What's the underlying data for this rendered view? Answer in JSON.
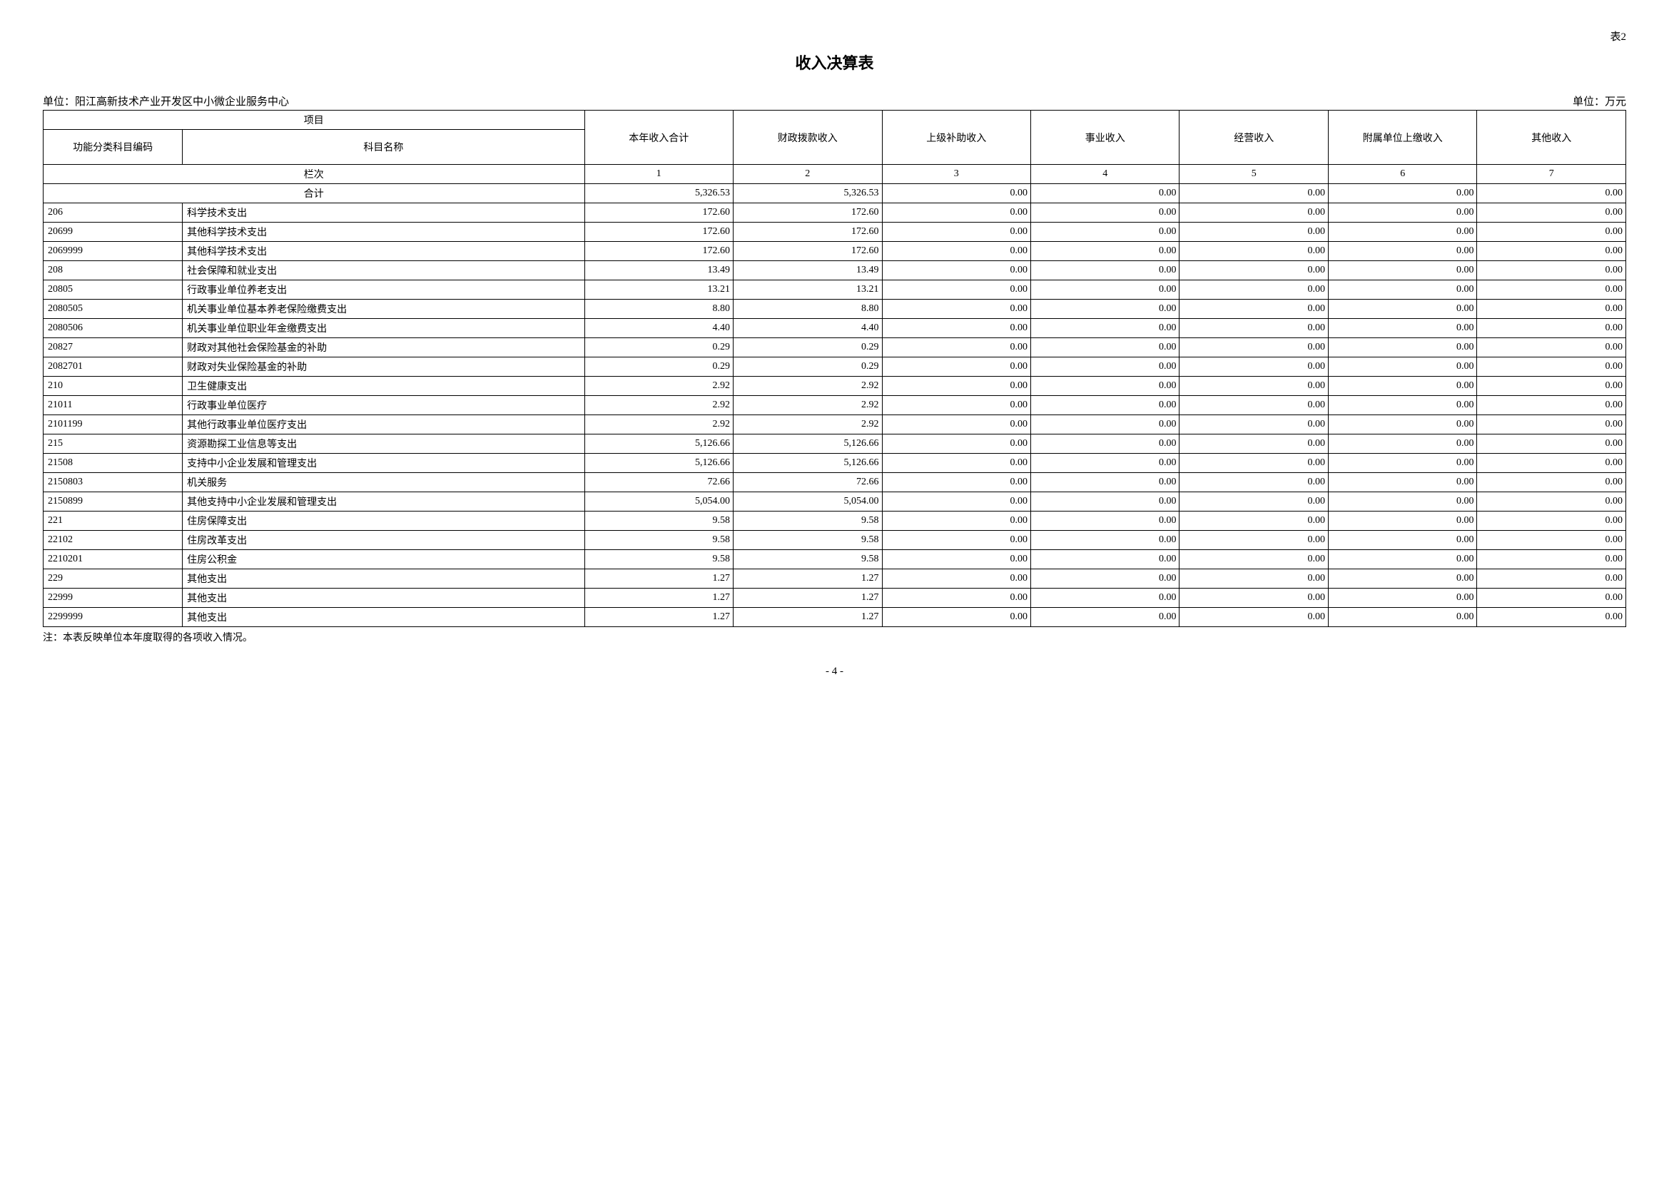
{
  "table_label": "表2",
  "title": "收入决算表",
  "unit_left_prefix": "单位：",
  "unit_left": "阳江高新技术产业开发区中小微企业服务中心",
  "unit_right_prefix": "单位：",
  "unit_right": "万元",
  "header": {
    "project": "项目",
    "code": "功能分类科目编码",
    "name": "科目名称",
    "cols": [
      "本年收入合计",
      "财政拨款收入",
      "上级补助收入",
      "事业收入",
      "经营收入",
      "附属单位上缴收入",
      "其他收入"
    ]
  },
  "col_index_row": {
    "label": "栏次",
    "nums": [
      "1",
      "2",
      "3",
      "4",
      "5",
      "6",
      "7"
    ]
  },
  "total_label": "合计",
  "rows": [
    {
      "code": "",
      "name": "合计",
      "v": [
        "5,326.53",
        "5,326.53",
        "0.00",
        "0.00",
        "0.00",
        "0.00",
        "0.00"
      ]
    },
    {
      "code": "206",
      "name": "科学技术支出",
      "v": [
        "172.60",
        "172.60",
        "0.00",
        "0.00",
        "0.00",
        "0.00",
        "0.00"
      ]
    },
    {
      "code": "20699",
      "name": "其他科学技术支出",
      "v": [
        "172.60",
        "172.60",
        "0.00",
        "0.00",
        "0.00",
        "0.00",
        "0.00"
      ]
    },
    {
      "code": "2069999",
      "name": "其他科学技术支出",
      "v": [
        "172.60",
        "172.60",
        "0.00",
        "0.00",
        "0.00",
        "0.00",
        "0.00"
      ]
    },
    {
      "code": "208",
      "name": "社会保障和就业支出",
      "v": [
        "13.49",
        "13.49",
        "0.00",
        "0.00",
        "0.00",
        "0.00",
        "0.00"
      ]
    },
    {
      "code": "20805",
      "name": "行政事业单位养老支出",
      "v": [
        "13.21",
        "13.21",
        "0.00",
        "0.00",
        "0.00",
        "0.00",
        "0.00"
      ]
    },
    {
      "code": "2080505",
      "name": "机关事业单位基本养老保险缴费支出",
      "v": [
        "8.80",
        "8.80",
        "0.00",
        "0.00",
        "0.00",
        "0.00",
        "0.00"
      ]
    },
    {
      "code": "2080506",
      "name": "机关事业单位职业年金缴费支出",
      "v": [
        "4.40",
        "4.40",
        "0.00",
        "0.00",
        "0.00",
        "0.00",
        "0.00"
      ]
    },
    {
      "code": "20827",
      "name": "财政对其他社会保险基金的补助",
      "v": [
        "0.29",
        "0.29",
        "0.00",
        "0.00",
        "0.00",
        "0.00",
        "0.00"
      ]
    },
    {
      "code": "2082701",
      "name": "财政对失业保险基金的补助",
      "v": [
        "0.29",
        "0.29",
        "0.00",
        "0.00",
        "0.00",
        "0.00",
        "0.00"
      ]
    },
    {
      "code": "210",
      "name": "卫生健康支出",
      "v": [
        "2.92",
        "2.92",
        "0.00",
        "0.00",
        "0.00",
        "0.00",
        "0.00"
      ]
    },
    {
      "code": "21011",
      "name": "行政事业单位医疗",
      "v": [
        "2.92",
        "2.92",
        "0.00",
        "0.00",
        "0.00",
        "0.00",
        "0.00"
      ]
    },
    {
      "code": "2101199",
      "name": "其他行政事业单位医疗支出",
      "v": [
        "2.92",
        "2.92",
        "0.00",
        "0.00",
        "0.00",
        "0.00",
        "0.00"
      ]
    },
    {
      "code": "215",
      "name": "资源勘探工业信息等支出",
      "v": [
        "5,126.66",
        "5,126.66",
        "0.00",
        "0.00",
        "0.00",
        "0.00",
        "0.00"
      ]
    },
    {
      "code": "21508",
      "name": "支持中小企业发展和管理支出",
      "v": [
        "5,126.66",
        "5,126.66",
        "0.00",
        "0.00",
        "0.00",
        "0.00",
        "0.00"
      ]
    },
    {
      "code": "2150803",
      "name": "机关服务",
      "v": [
        "72.66",
        "72.66",
        "0.00",
        "0.00",
        "0.00",
        "0.00",
        "0.00"
      ]
    },
    {
      "code": "2150899",
      "name": "其他支持中小企业发展和管理支出",
      "v": [
        "5,054.00",
        "5,054.00",
        "0.00",
        "0.00",
        "0.00",
        "0.00",
        "0.00"
      ]
    },
    {
      "code": "221",
      "name": "住房保障支出",
      "v": [
        "9.58",
        "9.58",
        "0.00",
        "0.00",
        "0.00",
        "0.00",
        "0.00"
      ]
    },
    {
      "code": "22102",
      "name": "住房改革支出",
      "v": [
        "9.58",
        "9.58",
        "0.00",
        "0.00",
        "0.00",
        "0.00",
        "0.00"
      ]
    },
    {
      "code": "2210201",
      "name": "住房公积金",
      "v": [
        "9.58",
        "9.58",
        "0.00",
        "0.00",
        "0.00",
        "0.00",
        "0.00"
      ]
    },
    {
      "code": "229",
      "name": "其他支出",
      "v": [
        "1.27",
        "1.27",
        "0.00",
        "0.00",
        "0.00",
        "0.00",
        "0.00"
      ]
    },
    {
      "code": "22999",
      "name": "其他支出",
      "v": [
        "1.27",
        "1.27",
        "0.00",
        "0.00",
        "0.00",
        "0.00",
        "0.00"
      ]
    },
    {
      "code": "2299999",
      "name": "其他支出",
      "v": [
        "1.27",
        "1.27",
        "0.00",
        "0.00",
        "0.00",
        "0.00",
        "0.00"
      ]
    }
  ],
  "footnote": "注：本表反映单位本年度取得的各项收入情况。",
  "page_number": "- 4 -"
}
